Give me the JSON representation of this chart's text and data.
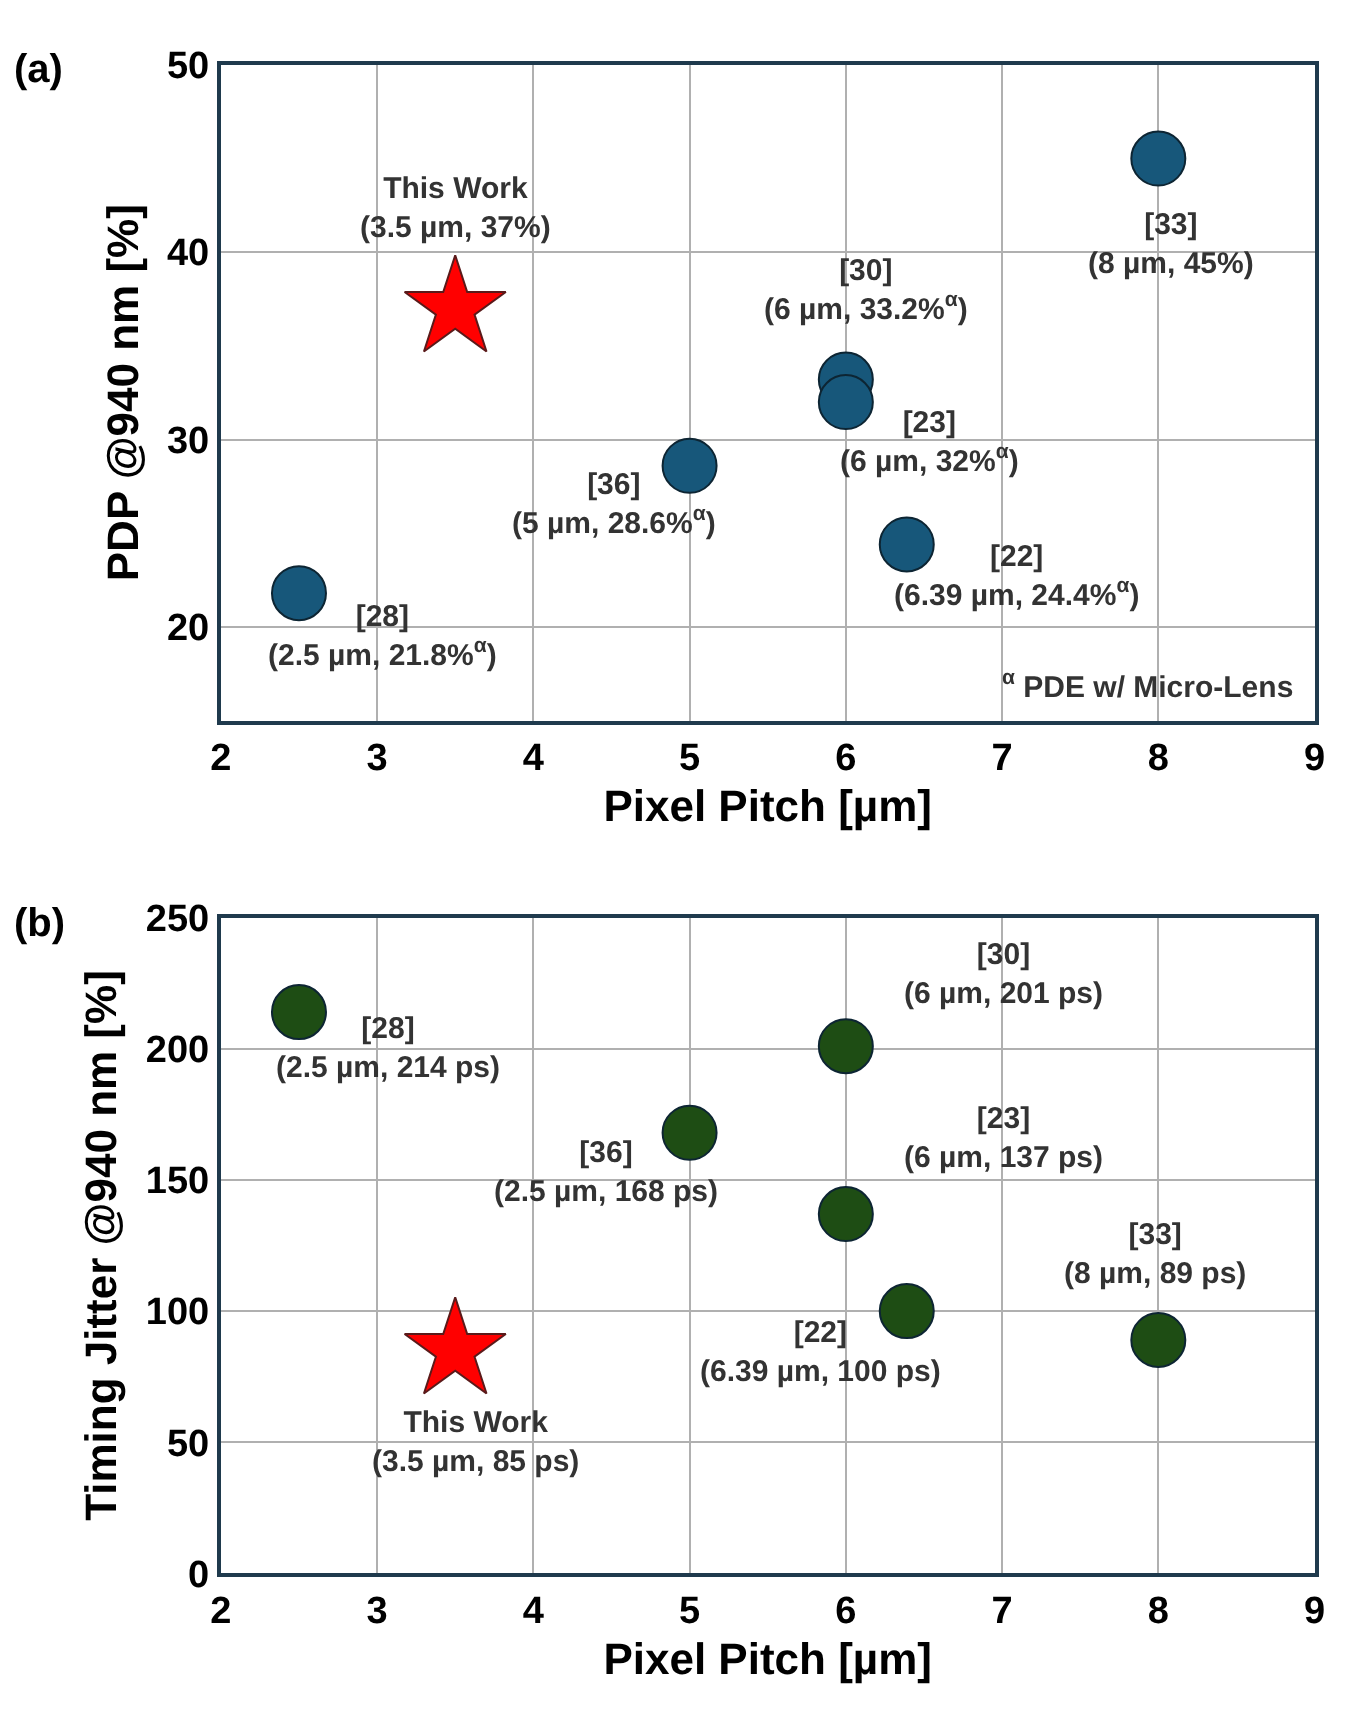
{
  "chart_data": [
    {
      "type": "scatter",
      "title": "(a)",
      "xlabel": "Pixel Pitch [µm]",
      "ylabel": "PDP @940 nm [%]",
      "xlim": [
        2,
        9
      ],
      "xticks": [
        2,
        3,
        4,
        5,
        6,
        7,
        8,
        9
      ],
      "ylim": [
        15,
        50
      ],
      "yticks": [
        20,
        30,
        40,
        50
      ],
      "grid": true,
      "series": [
        {
          "color": "#17577a",
          "marker": "circle",
          "x": [
            2.5,
            5,
            6,
            6,
            6.39,
            8
          ],
          "values": [
            21.8,
            28.6,
            33.2,
            32,
            24.4,
            45
          ]
        },
        {
          "color": "#ff0000",
          "marker": "star",
          "x": [
            3.5
          ],
          "values": [
            37
          ]
        }
      ],
      "annotations": [
        {
          "text": "[28]\n(2.5 µm, 21.8%$^{α}$)",
          "x": 2.5,
          "y": 21.8
        },
        {
          "text": "[36]\n(5 µm, 28.6%$^{α}$)",
          "x": 5,
          "y": 28.6
        },
        {
          "text": "[30]\n(6 µm, 33.2%$^{α}$)",
          "x": 6,
          "y": 33.2
        },
        {
          "text": "[23]\n(6 µm, 32%$^{α}$)",
          "x": 6,
          "y": 32
        },
        {
          "text": "[22]\n(6.39 µm, 24.4%$^{α}$)",
          "x": 6.39,
          "y": 24.4
        },
        {
          "text": "[33]\n(8 µm, 45%)",
          "x": 8,
          "y": 45
        },
        {
          "text": "This Work\n(3.5 µm, 37%)",
          "x": 3.5,
          "y": 37
        },
        "$^{α}$ PDE w/ Micro-Lens"
      ]
    },
    {
      "type": "scatter",
      "title": "(b)",
      "xlabel": "Pixel Pitch [µm]",
      "ylabel": "Timing Jitter @940 nm [%]",
      "xlim": [
        2,
        9
      ],
      "xticks": [
        2,
        3,
        4,
        5,
        6,
        7,
        8,
        9
      ],
      "ylim": [
        0,
        250
      ],
      "yticks": [
        0,
        50,
        100,
        150,
        200,
        250
      ],
      "grid": true,
      "series": [
        {
          "color": "#1e4d14",
          "marker": "circle",
          "x": [
            2.5,
            5,
            6,
            6,
            6.39,
            8
          ],
          "values": [
            214,
            168,
            201,
            137,
            100,
            89
          ]
        },
        {
          "color": "#ff0000",
          "marker": "star",
          "x": [
            3.5
          ],
          "values": [
            85
          ]
        }
      ],
      "annotations": [
        {
          "text": "[28]\n(2.5 µm, 214 ps)",
          "x": 2.5,
          "y": 214
        },
        {
          "text": "[36]\n(2.5 µm, 168 ps)",
          "x": 5,
          "y": 168
        },
        {
          "text": "[30]\n(6 µm, 201 ps)",
          "x": 6,
          "y": 201
        },
        {
          "text": "[23]\n(6 µm, 137 ps)",
          "x": 6,
          "y": 137
        },
        {
          "text": "[22]\n(6.39 µm, 100 ps)",
          "x": 6.39,
          "y": 100
        },
        {
          "text": "[33]\n(8 µm, 89 ps)",
          "x": 8,
          "y": 89
        },
        {
          "text": "This Work\n(3.5 µm, 85 ps)",
          "x": 3.5,
          "y": 85
        }
      ]
    }
  ]
}
